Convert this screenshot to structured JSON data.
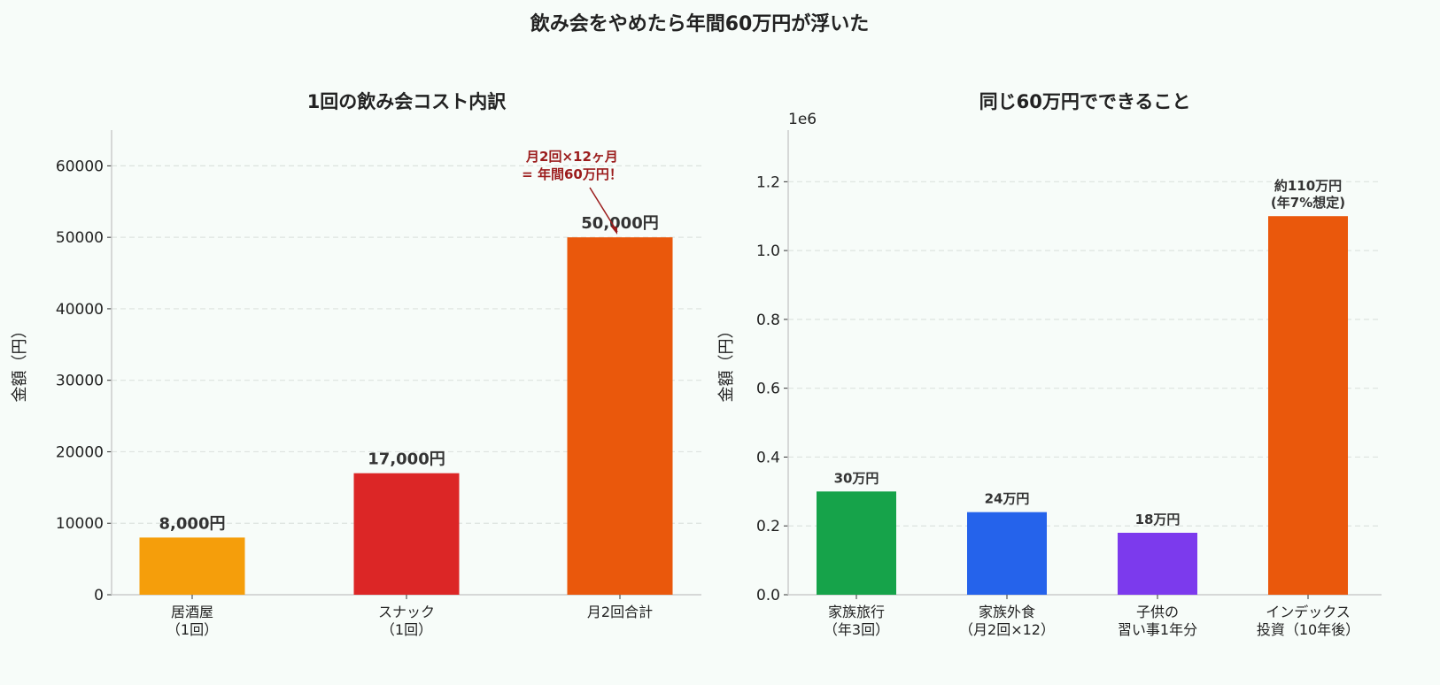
{
  "suptitle": "飲み会をやめたら年間60万円が浮いた",
  "chart_data": [
    {
      "type": "bar",
      "title": "1回の飲み会コスト内訳",
      "ylabel": "金額（円）",
      "xlabel": "",
      "categories": [
        "居酒屋\n（1回）",
        "スナック\n（1回）",
        "月2回合計"
      ],
      "values": [
        8000,
        17000,
        50000
      ],
      "data_labels": [
        "8,000円",
        "17,000円",
        "50,000円"
      ],
      "colors": [
        "#f59e0b",
        "#dc2626",
        "#ea580c"
      ],
      "ylim": [
        0,
        65000
      ],
      "yticks": [
        0,
        10000,
        20000,
        30000,
        40000,
        50000,
        60000
      ],
      "ytick_labels": [
        "0",
        "10000",
        "20000",
        "30000",
        "40000",
        "50000",
        "60000"
      ],
      "grid": "y-dashed",
      "annotation": {
        "text": "月2回×12ヶ月\n= 年間60万円！",
        "target_index": 2,
        "color": "#9b1c1c"
      }
    },
    {
      "type": "bar",
      "title": "同じ60万円でできること",
      "ylabel": "金額（円）",
      "xlabel": "",
      "offset_label": "1e6",
      "categories": [
        "家族旅行\n（年3回）",
        "家族外食\n（月2回×12）",
        "子供の\n習い事1年分",
        "インデックス\n投資（10年後）"
      ],
      "values": [
        300000,
        240000,
        180000,
        1100000
      ],
      "data_labels": [
        "30万円",
        "24万円",
        "18万円",
        "約110万円\n(年7%想定)"
      ],
      "colors": [
        "#16a34a",
        "#2563eb",
        "#7c3aed",
        "#ea580c"
      ],
      "ylim": [
        0,
        1350000
      ],
      "yticks": [
        0,
        200000,
        400000,
        600000,
        800000,
        1000000,
        1200000
      ],
      "ytick_labels": [
        "0.0",
        "0.2",
        "0.4",
        "0.6",
        "0.8",
        "1.0",
        "1.2"
      ],
      "grid": "y-dashed"
    }
  ]
}
